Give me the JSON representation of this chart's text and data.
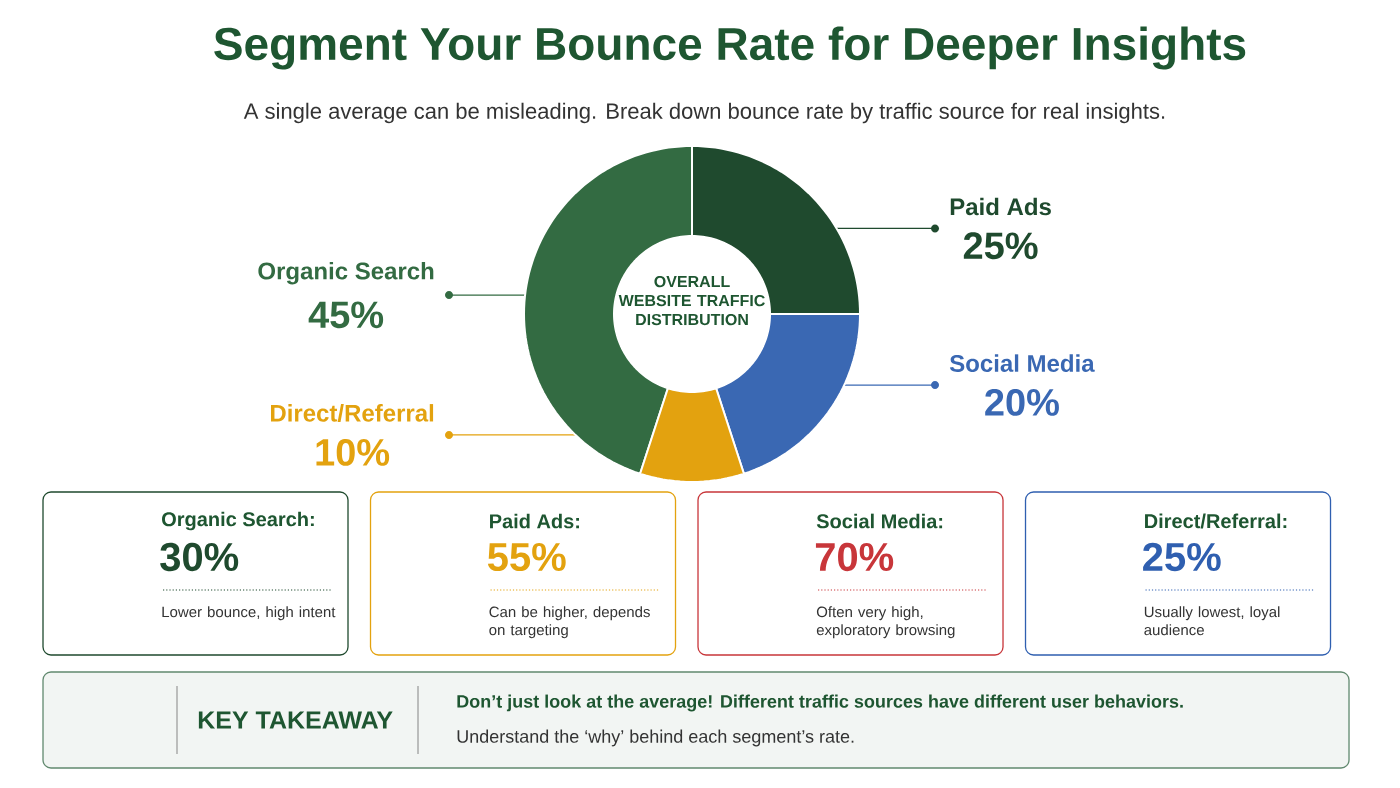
{
  "chart_data": [
    {
      "type": "donut",
      "title": "Segment Your Bounce Rate for Deeper Insights",
      "subtitle": "A single average can be misleading. Break down bounce rate by traffic source for real insights.",
      "categories": [
        "Organic Search",
        "Paid Ads",
        "Social Media",
        "Direct/Referral"
      ],
      "values": [
        45,
        25,
        20,
        10
      ],
      "value_labels": [
        "45%",
        "25%",
        "20%",
        "10%"
      ],
      "colors": [
        "#336b42",
        "#1f4a2e",
        "#3a68b3",
        "#e3a20f"
      ],
      "annotations": [
        "OVERALL WEBSITE TRAFFIC DISTRIBUTION"
      ]
    },
    {
      "type": "other",
      "colors": [
        "#1f4a2e",
        "#e3a20f",
        "#c8363a",
        "#2f5fb0"
      ],
      "annotations": [
        "Organic Search:",
        "30%",
        "Lower bounce, high intent",
        "Paid Ads:",
        "55%",
        "Can be higher, depends on targeting",
        "Social Media:",
        "70%",
        "Often very high, exploratory browsing",
        "Direct/Referral:",
        "25%",
        "Usually lowest, loyal audience",
        "KEY TAKEAWAY",
        "Don’t just look at the average! Different traffic sources have different user behaviors.",
        "Understand the ‘why’ behind each segment’s rate."
      ]
    }
  ]
}
